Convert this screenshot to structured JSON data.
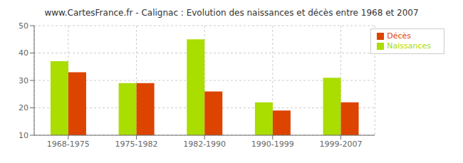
{
  "chart_data": {
    "type": "bar",
    "title": "www.CartesFrance.fr - Calignac : Evolution des naissances et décès entre 1968 et 2007",
    "categories": [
      "1968-1975",
      "1975-1982",
      "1982-1990",
      "1990-1999",
      "1999-2007"
    ],
    "series": [
      {
        "name": "Naissances",
        "color": "#aadd00",
        "values": [
          37,
          29,
          45,
          22,
          31
        ]
      },
      {
        "name": "Décès",
        "color": "#dd4400",
        "values": [
          33,
          29,
          26,
          19,
          22
        ]
      }
    ],
    "ylim": [
      10,
      50
    ],
    "yticks": [
      10,
      20,
      30,
      40,
      50
    ],
    "grid": true,
    "legend": "upper right"
  }
}
